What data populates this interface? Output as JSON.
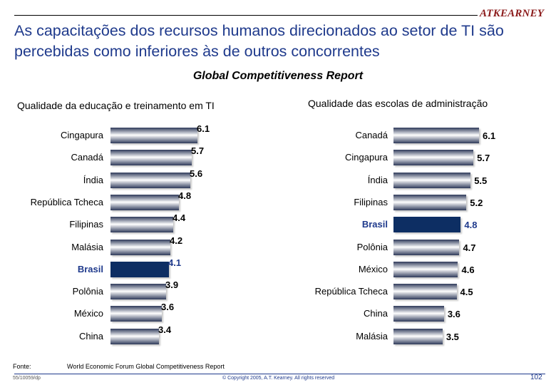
{
  "header": {
    "logo_text": "ATKEARNEY",
    "title": "As capacitações dos recursos humanos direcionados ao setor de TI são percebidas como inferiores às de outros concorrentes",
    "subtitle": "Global Competitiveness Report"
  },
  "colors": {
    "title": "#1f3a8c",
    "highlight_bar": "#0d2e63",
    "bar_gradient_edge": "#2e3a5a",
    "logo": "#8b1a1a"
  },
  "chart_data": [
    {
      "type": "bar",
      "orientation": "horizontal",
      "title": "Qualidade da educação e treinamento em TI",
      "categories": [
        "Cingapura",
        "Canadá",
        "Índia",
        "República Tcheca",
        "Filipinas",
        "Malásia",
        "Brasil",
        "Polônia",
        "México",
        "China"
      ],
      "values": [
        6.1,
        5.7,
        5.6,
        4.8,
        4.4,
        4.2,
        4.1,
        3.9,
        3.6,
        3.4
      ],
      "value_labels": [
        "6.1",
        "5.7",
        "5.6",
        "4.8",
        "4.4",
        "4.2",
        "4.1",
        "3.9",
        "3.6",
        "3.4"
      ],
      "highlight": "Brasil"
    },
    {
      "type": "bar",
      "orientation": "horizontal",
      "title": "Qualidade das escolas de administração",
      "categories": [
        "Canadá",
        "Cingapura",
        "Índia",
        "Filipinas",
        "Brasil",
        "Polônia",
        "México",
        "República Tcheca",
        "China",
        "Malásia"
      ],
      "values": [
        6.1,
        5.7,
        5.5,
        5.2,
        4.8,
        4.7,
        4.6,
        4.5,
        3.6,
        3.5
      ],
      "value_labels": [
        "6.1",
        "5.7",
        "5.5",
        "5.2",
        "4.8",
        "4.7",
        "4.6",
        "4.5",
        "3.6",
        "3.5"
      ],
      "highlight": "Brasil"
    }
  ],
  "footer": {
    "source_label": "Fonte:",
    "source_text": "World Economic Forum Global Competitiveness Report",
    "code": "55/10059/dp",
    "copyright": "© Copyright 2005, A.T. Kearney. All rights reserved",
    "page": "102"
  }
}
